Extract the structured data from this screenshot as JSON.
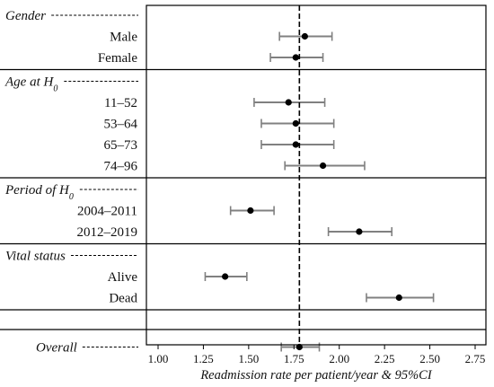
{
  "chart_data": {
    "type": "forest",
    "xlabel": "Readmission rate per patient/year & 95%CI",
    "xlim": [
      0.95,
      2.78
    ],
    "xticks": [
      "1.00",
      "1.25",
      "1.50",
      "1.75",
      "2.00",
      "2.25",
      "2.50",
      "2.75"
    ],
    "reference_line": 1.78,
    "grid": false,
    "groups": [
      {
        "label": "Gender",
        "rows": [
          {
            "label": "Male",
            "estimate": 1.81,
            "ci_low": 1.67,
            "ci_high": 1.96
          },
          {
            "label": "Female",
            "estimate": 1.76,
            "ci_low": 1.62,
            "ci_high": 1.91
          }
        ]
      },
      {
        "label": "Age at H",
        "label_sub": "0",
        "rows": [
          {
            "label": "11–52",
            "estimate": 1.72,
            "ci_low": 1.53,
            "ci_high": 1.92
          },
          {
            "label": "53–64",
            "estimate": 1.76,
            "ci_low": 1.57,
            "ci_high": 1.97
          },
          {
            "label": "65–73",
            "estimate": 1.76,
            "ci_low": 1.57,
            "ci_high": 1.97
          },
          {
            "label": "74–96",
            "estimate": 1.91,
            "ci_low": 1.7,
            "ci_high": 2.14
          }
        ]
      },
      {
        "label": "Period of H",
        "label_sub": "0",
        "rows": [
          {
            "label": "2004–2011",
            "estimate": 1.51,
            "ci_low": 1.4,
            "ci_high": 1.64
          },
          {
            "label": "2012–2019",
            "estimate": 2.11,
            "ci_low": 1.94,
            "ci_high": 2.29
          }
        ]
      },
      {
        "label": "Vital status",
        "rows": [
          {
            "label": "Alive",
            "estimate": 1.37,
            "ci_low": 1.26,
            "ci_high": 1.49
          },
          {
            "label": "Dead",
            "estimate": 2.33,
            "ci_low": 2.15,
            "ci_high": 2.52
          }
        ]
      }
    ],
    "overall": {
      "label": "Overall",
      "estimate": 1.78,
      "ci_low": 1.68,
      "ci_high": 1.89
    }
  }
}
